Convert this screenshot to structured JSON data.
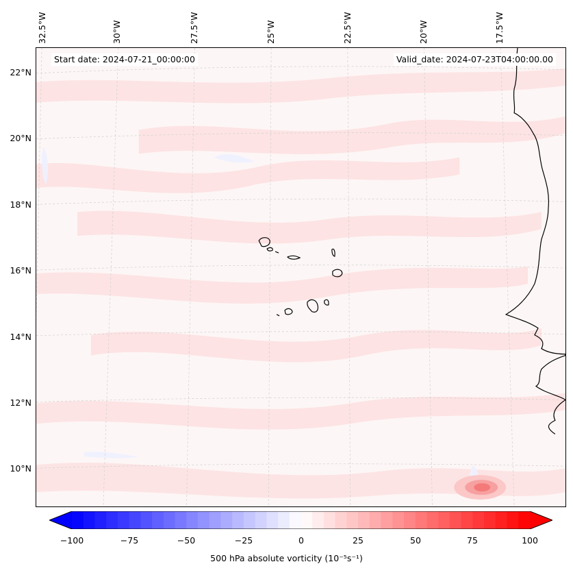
{
  "header": {
    "start_date": "Start date: 2024-07-21_00:00:00",
    "valid_date": "Valid_date: 2024-07-23T04:00:00.00"
  },
  "lon_labels": [
    "32.5°W",
    "30°W",
    "27.5°W",
    "25°W",
    "22.5°W",
    "20°W",
    "17.5°W"
  ],
  "lat_labels": [
    "22°N",
    "20°N",
    "18°N",
    "16°N",
    "14°N",
    "12°N",
    "10°N"
  ],
  "colorbar": {
    "ticks": [
      "−100",
      "−75",
      "−50",
      "−25",
      "0",
      "25",
      "50",
      "75",
      "100"
    ],
    "min": -100,
    "max": 100,
    "label": "500 hPa absolute vorticity (10⁻⁵s⁻¹)",
    "colors": {
      "neg": "#0000ff",
      "zero": "#ffffff",
      "pos": "#ff0000"
    }
  },
  "field_colors": {
    "background": "#fdf6f6",
    "band": "#fde4e4",
    "neg_band": "#eef0ff",
    "max": "#f47a7a"
  }
}
